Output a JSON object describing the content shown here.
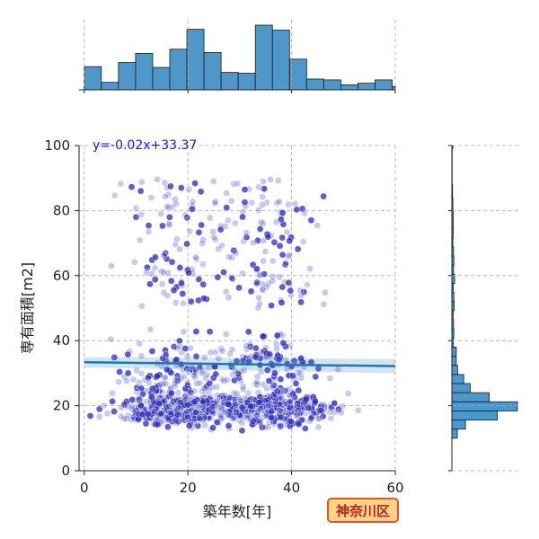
{
  "chart_data": {
    "type": "scatter",
    "xlabel": "築年数[年]",
    "ylabel": "専有面積[m2]",
    "xlim": [
      -1,
      60
    ],
    "ylim": [
      0,
      100
    ],
    "x_ticks": [
      0,
      20,
      40,
      60
    ],
    "y_ticks": [
      0,
      20,
      40,
      60,
      80,
      100
    ],
    "grid": true,
    "point_color": "#2a2ab8",
    "line_color": "#1f77b4",
    "hist_color": "#4f97c9",
    "regression": {
      "slope": -0.02,
      "intercept": 33.37,
      "label": "y=-0.02x+33.37",
      "label_color": "#1a1acc"
    },
    "region_label": "神奈川区",
    "hist_x": {
      "bin_edges": [
        0,
        3.3,
        6.6,
        9.9,
        13.2,
        16.5,
        19.8,
        23.1,
        26.4,
        29.7,
        33,
        36.3,
        39.6,
        42.9,
        46.2,
        49.5,
        52.8,
        56.1,
        59.4,
        60
      ],
      "counts": [
        28,
        9,
        33,
        44,
        27,
        49,
        73,
        45,
        21,
        20,
        78,
        72,
        37,
        13,
        12,
        6,
        8,
        12,
        4
      ]
    },
    "hist_y": {
      "bin_edges": [
        10,
        12.8,
        15.6,
        18.4,
        21.2,
        24,
        26.8,
        29.6,
        32.4,
        35.2,
        38,
        40.8,
        43.6,
        46.4,
        49.2,
        52,
        54.8,
        57.6,
        60.4,
        63.2,
        66,
        68.8,
        71.6,
        74.4,
        80,
        84,
        88,
        99,
        100
      ],
      "counts": [
        16,
        40,
        134,
        193,
        110,
        54,
        35,
        17,
        13,
        13,
        4,
        6,
        5,
        4,
        7,
        6,
        4,
        8,
        5,
        6,
        5,
        3,
        4,
        4,
        3,
        2,
        1,
        3
      ]
    }
  }
}
